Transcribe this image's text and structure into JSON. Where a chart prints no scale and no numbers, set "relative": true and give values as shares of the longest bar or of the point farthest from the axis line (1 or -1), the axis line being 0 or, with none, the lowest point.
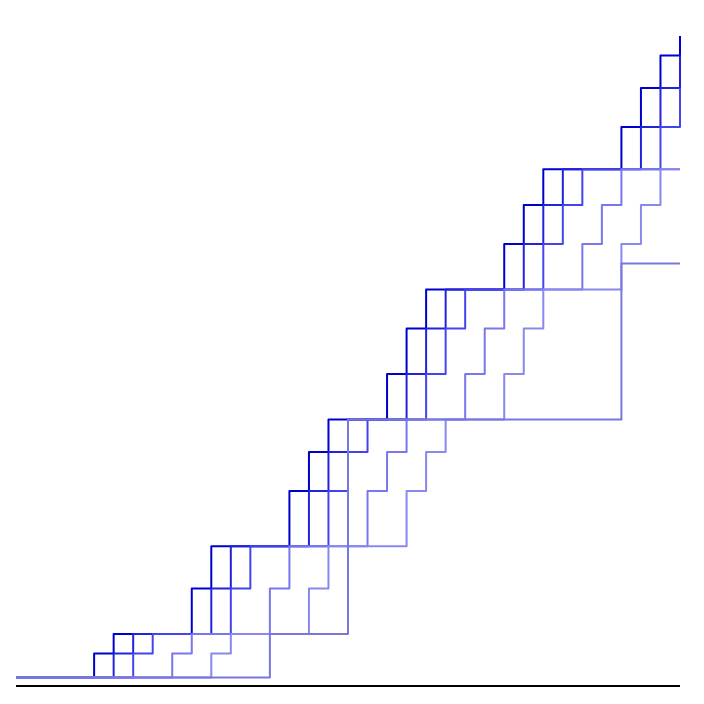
{
  "chart_data": {
    "type": "step",
    "relative": true,
    "tick_labels": false,
    "line_style": "solid",
    "marker": "none",
    "categories": [
      null,
      null,
      null,
      null,
      null,
      null,
      null,
      null,
      null,
      null,
      null,
      null,
      null,
      null,
      null,
      null,
      null,
      null,
      null,
      null,
      null,
      null,
      null,
      null,
      null,
      null,
      null,
      null,
      null,
      null,
      null,
      null,
      null,
      null,
      null
    ],
    "series": [
      {
        "color": "#0000cc",
        "values": [
          0.013,
          0.013,
          0.013,
          0.013,
          0.05,
          0.08,
          0.08,
          0.08,
          0.08,
          0.15,
          0.215,
          0.215,
          0.215,
          0.215,
          0.3,
          0.36,
          0.41,
          0.41,
          0.41,
          0.48,
          0.55,
          0.61,
          0.61,
          0.61,
          0.61,
          0.68,
          0.74,
          0.795,
          0.795,
          0.795,
          0.795,
          0.86,
          0.92,
          0.97,
          1
        ]
      },
      {
        "color": "#2222dd",
        "values": [
          0.013,
          0.013,
          0.013,
          0.013,
          0.013,
          0.05,
          0.08,
          0.08,
          0.08,
          0.08,
          0.15,
          0.215,
          0.215,
          0.215,
          0.215,
          0.3,
          0.36,
          0.41,
          0.41,
          0.41,
          0.48,
          0.55,
          0.61,
          0.61,
          0.61,
          0.61,
          0.68,
          0.74,
          0.795,
          0.795,
          0.795,
          0.795,
          0.86,
          0.92,
          0.97
        ]
      },
      {
        "color": "#4444ee",
        "values": [
          0.013,
          0.013,
          0.013,
          0.013,
          0.013,
          0.013,
          0.05,
          0.08,
          0.08,
          0.08,
          0.08,
          0.15,
          0.215,
          0.215,
          0.215,
          0.215,
          0.3,
          0.36,
          0.41,
          0.41,
          0.41,
          0.48,
          0.55,
          0.61,
          0.61,
          0.61,
          0.61,
          0.68,
          0.74,
          0.795,
          0.795,
          0.795,
          0.795,
          0.86,
          0.92
        ]
      },
      {
        "color": "#7777ee",
        "values": [
          0.013,
          0.013,
          0.013,
          0.013,
          0.013,
          0.013,
          0.013,
          0.013,
          0.05,
          0.08,
          0.08,
          0.08,
          0.08,
          0.15,
          0.215,
          0.215,
          0.215,
          0.215,
          0.3,
          0.36,
          0.41,
          0.41,
          0.41,
          0.48,
          0.55,
          0.61,
          0.61,
          0.61,
          0.61,
          0.68,
          0.74,
          0.795,
          0.795,
          0.795,
          0.795
        ]
      },
      {
        "color": "#8888ee",
        "values": [
          0.013,
          0.013,
          0.013,
          0.013,
          0.013,
          0.013,
          0.013,
          0.013,
          0.013,
          0.013,
          0.05,
          0.08,
          0.08,
          0.08,
          0.08,
          0.15,
          0.215,
          0.215,
          0.215,
          0.215,
          0.3,
          0.36,
          0.41,
          0.41,
          0.41,
          0.48,
          0.55,
          0.61,
          0.61,
          0.61,
          0.61,
          0.68,
          0.74,
          0.795,
          0.795
        ]
      },
      {
        "color": "#7777dd",
        "values": [
          0.013,
          0.013,
          0.013,
          0.013,
          0.013,
          0.013,
          0.013,
          0.013,
          0.013,
          0.013,
          0.013,
          0.013,
          0.013,
          0.08,
          0.08,
          0.08,
          0.08,
          0.41,
          0.41,
          0.41,
          0.41,
          0.41,
          0.41,
          0.41,
          0.41,
          0.41,
          0.41,
          0.41,
          0.41,
          0.41,
          0.41,
          0.65,
          0.65,
          0.65,
          0.65
        ]
      }
    ]
  }
}
